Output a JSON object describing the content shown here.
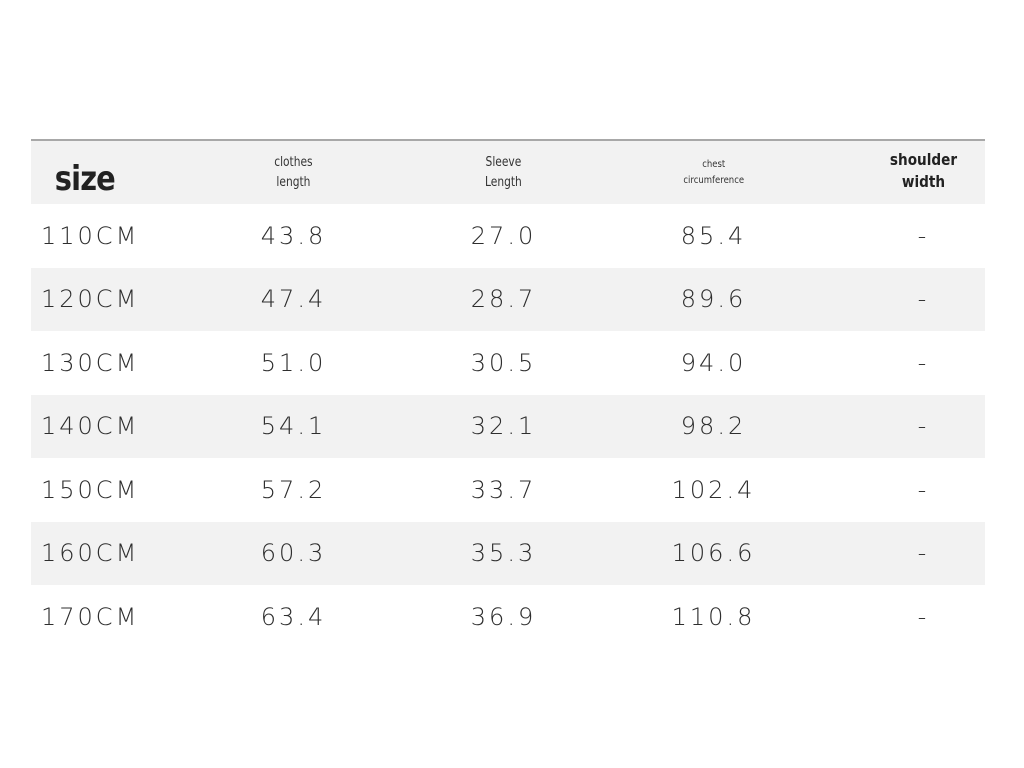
{
  "table": {
    "headers": [
      "size",
      "clothes\nlength",
      "Sleeve\nLength",
      "chest\ncircumference",
      "shoulder\nwidth"
    ],
    "rows": [
      [
        "110CM",
        "43.8",
        "27.0",
        "85.4",
        "-"
      ],
      [
        "120CM",
        "47.4",
        "28.7",
        "89.6",
        "-"
      ],
      [
        "130CM",
        "51.0",
        "30.5",
        "94.0",
        "-"
      ],
      [
        "140CM",
        "54.1",
        "32.1",
        "98.2",
        "-"
      ],
      [
        "150CM",
        "57.2",
        "33.7",
        "102.4",
        "-"
      ],
      [
        "160CM",
        "60.3",
        "35.3",
        "106.6",
        "-"
      ],
      [
        "170CM",
        "63.4",
        "36.9",
        "110.8",
        "-"
      ]
    ]
  },
  "colors": {
    "rule": "#a8a8a8",
    "shade": "#f2f2f2",
    "text": "#2e2e2e"
  }
}
